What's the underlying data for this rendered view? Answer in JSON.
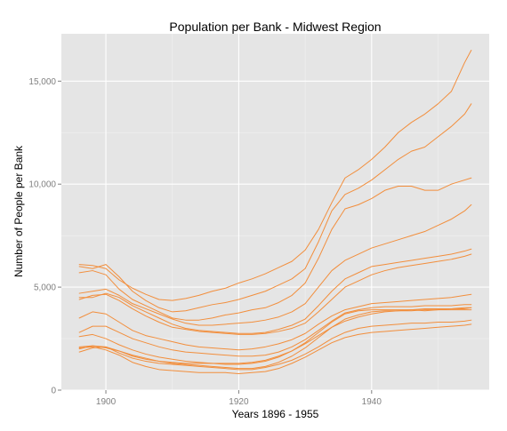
{
  "chart_data": {
    "type": "line",
    "title": "Population per Bank - Midwest Region",
    "xlabel": "Years 1896 - 1955",
    "ylabel": "Number of People per Bank",
    "xlim": [
      1893.3,
      1957.7
    ],
    "ylim": [
      0,
      17300
    ],
    "x_ticks": [
      1900,
      1920,
      1940
    ],
    "x_tick_labels": [
      "1900",
      "1920",
      "1940"
    ],
    "y_ticks": [
      0,
      5000,
      10000,
      15000
    ],
    "y_tick_labels": [
      "0",
      "5,000",
      "10,000",
      "15,000"
    ],
    "grid": true,
    "legend": "none",
    "line_color": "#f28e3c",
    "panel_color": "#e5e5e5",
    "grid_color": "#ffffff",
    "x": [
      1896,
      1898,
      1900,
      1902,
      1904,
      1906,
      1908,
      1910,
      1912,
      1914,
      1916,
      1918,
      1920,
      1922,
      1924,
      1926,
      1928,
      1930,
      1932,
      1934,
      1936,
      1938,
      1940,
      1942,
      1944,
      1946,
      1948,
      1950,
      1952,
      1954,
      1955
    ],
    "series": [
      {
        "values": [
          6100,
          6050,
          5900,
          5350,
          4950,
          4650,
          4400,
          4350,
          4450,
          4600,
          4800,
          4950,
          5200,
          5400,
          5650,
          5950,
          6250,
          6800,
          7800,
          9100,
          10300,
          10700,
          11200,
          11800,
          12500,
          13000,
          13400,
          13900,
          14500,
          15900,
          16500
        ]
      },
      {
        "values": [
          6000,
          5900,
          6100,
          5500,
          4800,
          4350,
          4000,
          3800,
          3850,
          4000,
          4150,
          4250,
          4400,
          4600,
          4800,
          5100,
          5400,
          5900,
          7200,
          8700,
          9500,
          9800,
          10200,
          10700,
          11200,
          11600,
          11800,
          12300,
          12800,
          13400,
          13900
        ]
      },
      {
        "values": [
          5700,
          5800,
          5600,
          4900,
          4400,
          4100,
          3800,
          3500,
          3400,
          3400,
          3500,
          3650,
          3750,
          3900,
          4000,
          4250,
          4600,
          5200,
          6400,
          7800,
          8800,
          9000,
          9300,
          9700,
          9900,
          9900,
          9700,
          9700,
          10000,
          10200,
          10300
        ]
      },
      {
        "values": [
          4700,
          4800,
          4900,
          4600,
          4200,
          3950,
          3700,
          3450,
          3250,
          3150,
          3150,
          3200,
          3250,
          3300,
          3400,
          3550,
          3800,
          4200,
          5000,
          5800,
          6300,
          6600,
          6900,
          7100,
          7300,
          7500,
          7700,
          8000,
          8300,
          8700,
          9000
        ]
      },
      {
        "values": [
          4500,
          4500,
          4700,
          4500,
          4100,
          3800,
          3500,
          3200,
          3000,
          2900,
          2850,
          2800,
          2750,
          2750,
          2800,
          2950,
          3150,
          3450,
          4100,
          4800,
          5400,
          5700,
          6000,
          6100,
          6200,
          6300,
          6400,
          6500,
          6600,
          6750,
          6850
        ]
      },
      {
        "values": [
          4400,
          4600,
          4650,
          4350,
          3950,
          3600,
          3300,
          3050,
          2950,
          2850,
          2800,
          2750,
          2700,
          2700,
          2750,
          2850,
          3000,
          3250,
          3800,
          4400,
          5000,
          5300,
          5600,
          5800,
          5950,
          6050,
          6150,
          6250,
          6350,
          6500,
          6600
        ]
      },
      {
        "values": [
          3500,
          3800,
          3700,
          3300,
          2900,
          2650,
          2500,
          2350,
          2200,
          2100,
          2050,
          2000,
          1950,
          2000,
          2100,
          2250,
          2450,
          2750,
          3200,
          3600,
          3900,
          4050,
          4200,
          4250,
          4300,
          4350,
          4400,
          4450,
          4500,
          4600,
          4650
        ]
      },
      {
        "values": [
          2800,
          3100,
          3100,
          2800,
          2500,
          2300,
          2100,
          1950,
          1850,
          1800,
          1750,
          1700,
          1650,
          1650,
          1700,
          1850,
          2100,
          2450,
          2900,
          3350,
          3750,
          3900,
          4000,
          4050,
          4050,
          4050,
          4100,
          4100,
          4100,
          4150,
          4150
        ]
      },
      {
        "values": [
          2600,
          2700,
          2500,
          2200,
          1950,
          1750,
          1600,
          1500,
          1400,
          1350,
          1300,
          1250,
          1250,
          1300,
          1400,
          1600,
          1900,
          2300,
          2800,
          3300,
          3700,
          3850,
          3900,
          3900,
          3900,
          3900,
          3850,
          3900,
          3950,
          4000,
          4000
        ]
      },
      {
        "values": [
          2100,
          2150,
          2050,
          1900,
          1700,
          1550,
          1400,
          1300,
          1250,
          1200,
          1150,
          1100,
          1050,
          1050,
          1150,
          1350,
          1650,
          2050,
          2550,
          3050,
          3450,
          3650,
          3800,
          3850,
          3850,
          3850,
          3900,
          3900,
          3900,
          3900,
          3900
        ]
      },
      {
        "values": [
          2000,
          2150,
          2100,
          1900,
          1650,
          1500,
          1400,
          1350,
          1300,
          1300,
          1300,
          1300,
          1300,
          1350,
          1450,
          1650,
          1900,
          2250,
          2650,
          3050,
          3350,
          3550,
          3700,
          3800,
          3850,
          3900,
          3950,
          3950,
          3950,
          3950,
          4000
        ]
      },
      {
        "values": [
          1850,
          2050,
          2100,
          1800,
          1550,
          1400,
          1300,
          1250,
          1200,
          1150,
          1100,
          1050,
          1000,
          1000,
          1100,
          1250,
          1450,
          1750,
          2100,
          2500,
          2800,
          3000,
          3100,
          3150,
          3200,
          3250,
          3250,
          3300,
          3300,
          3350,
          3400
        ]
      },
      {
        "values": [
          2050,
          2100,
          1950,
          1700,
          1350,
          1150,
          1000,
          950,
          900,
          850,
          850,
          850,
          800,
          850,
          900,
          1050,
          1300,
          1600,
          1950,
          2300,
          2550,
          2700,
          2800,
          2850,
          2900,
          2950,
          3000,
          3050,
          3100,
          3150,
          3200
        ]
      }
    ]
  }
}
